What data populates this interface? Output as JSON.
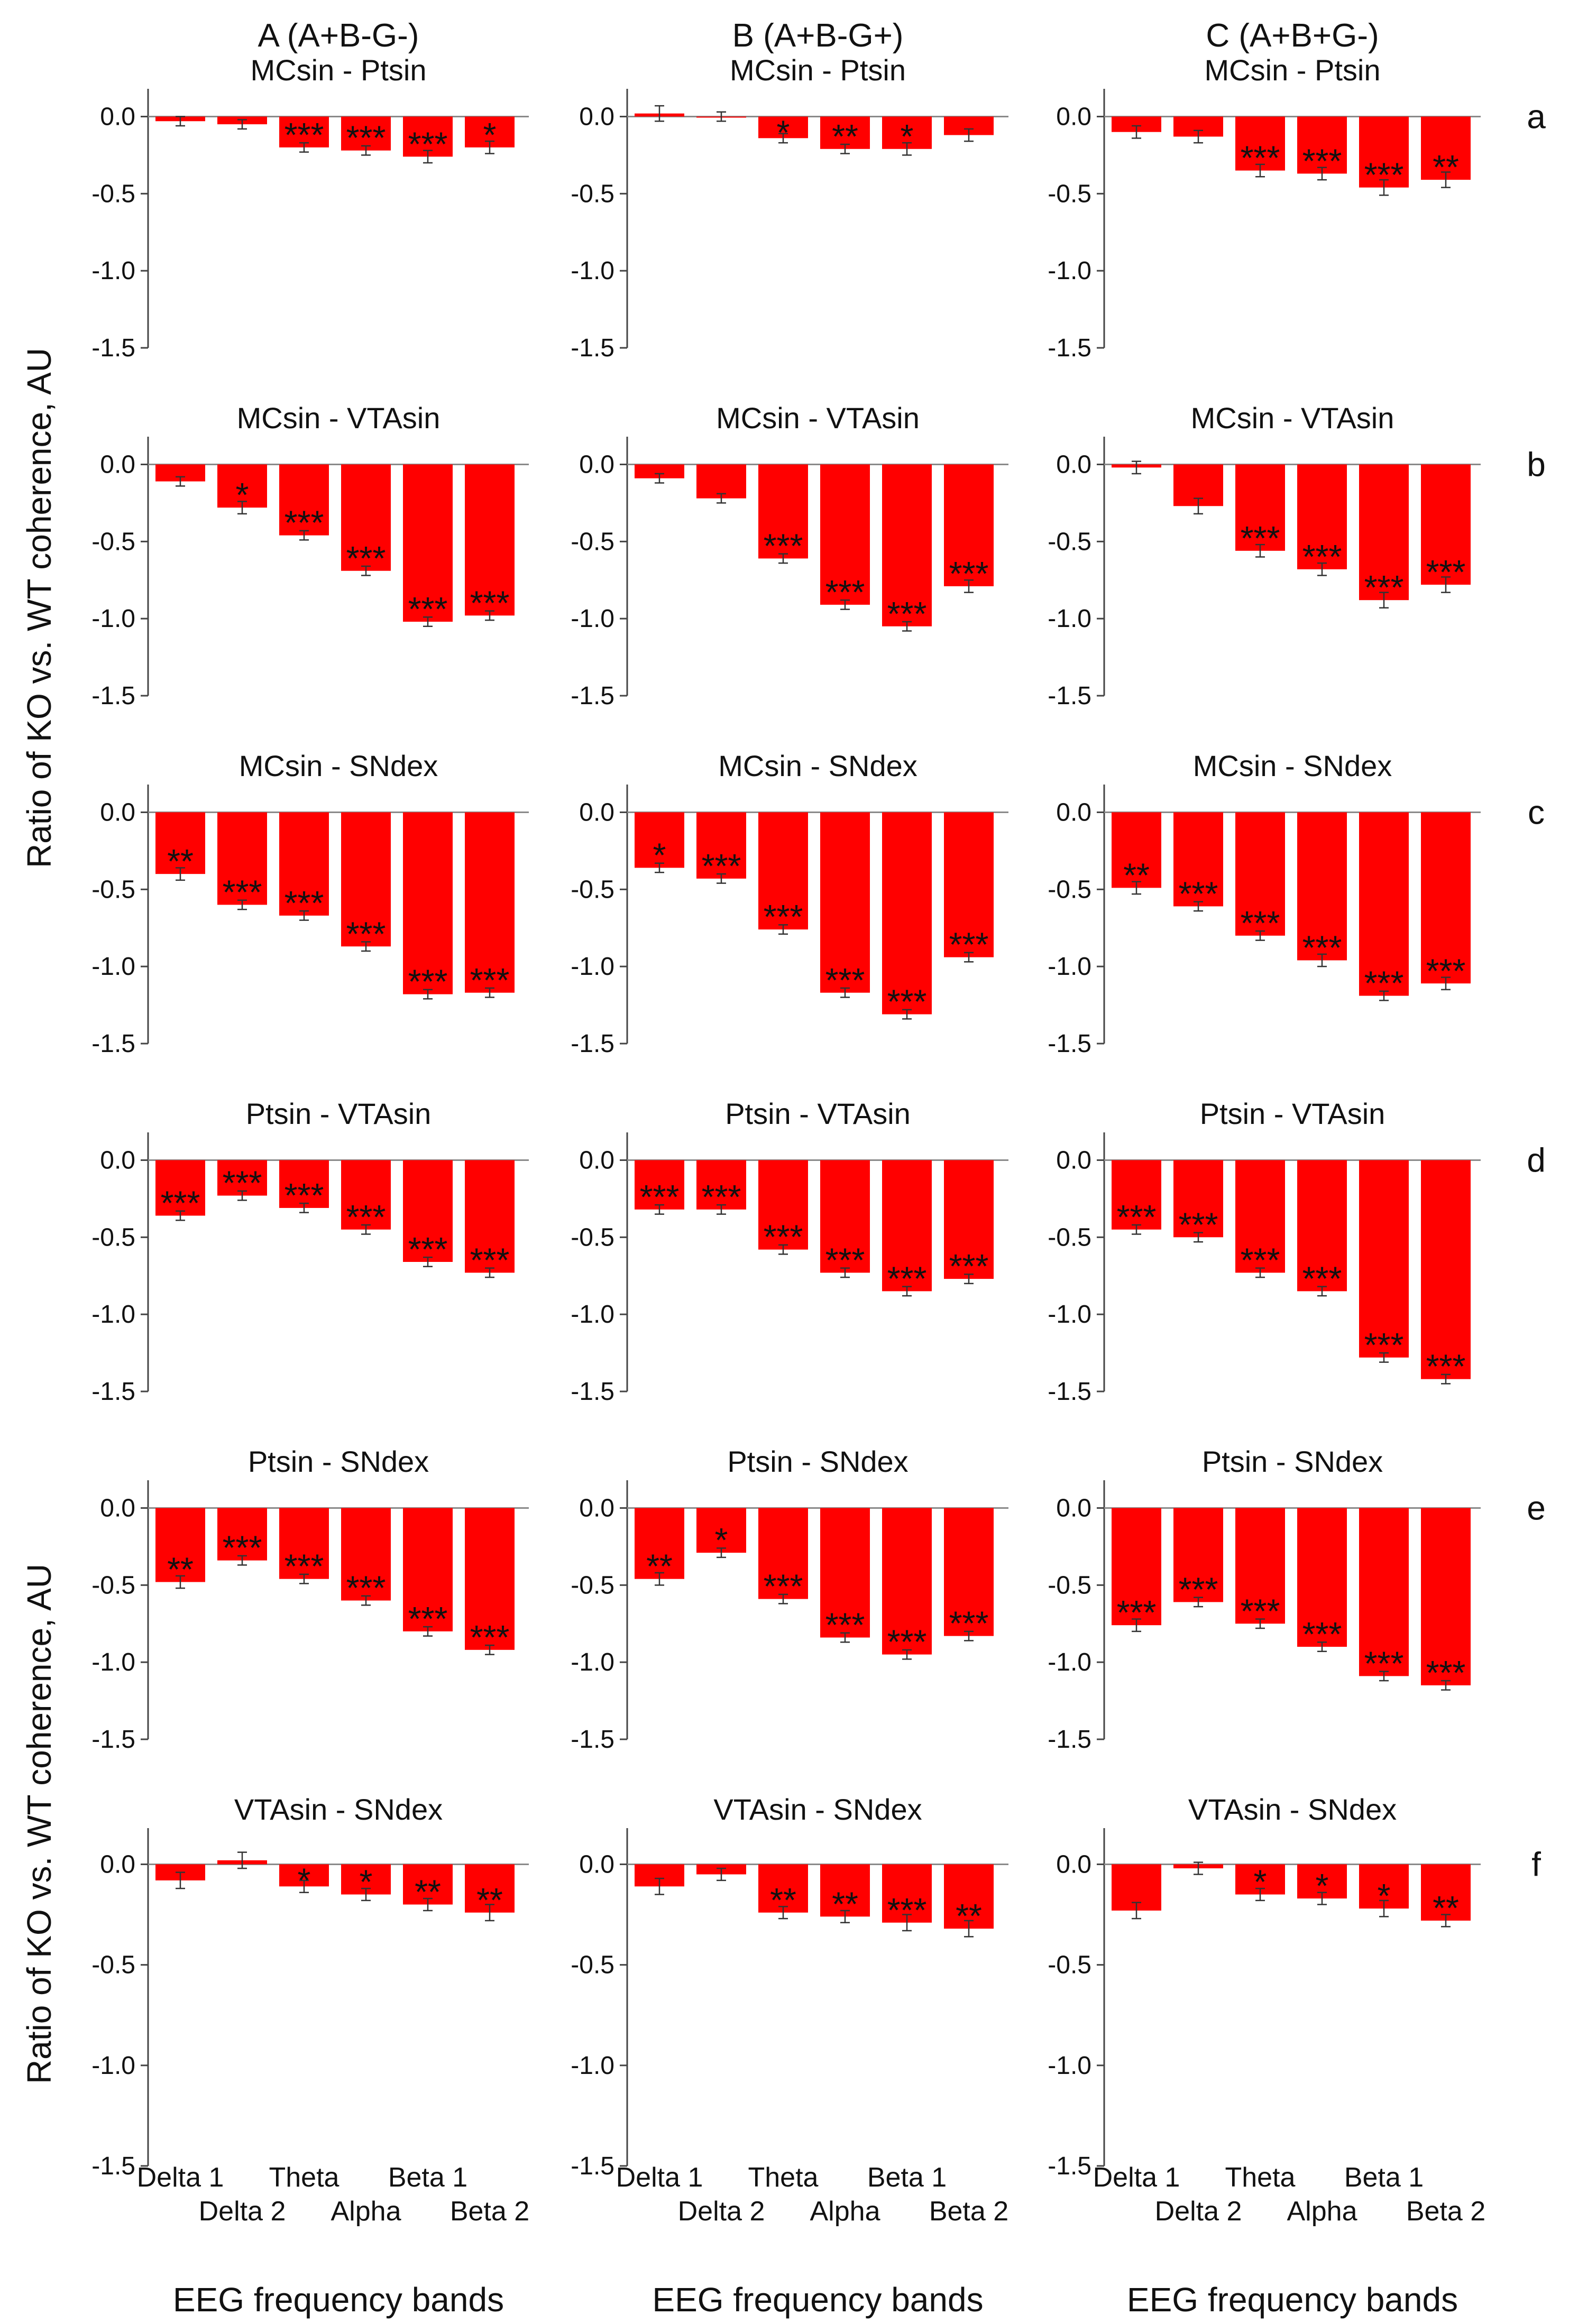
{
  "chart_data": {
    "type": "bar",
    "ylabel": "Ratio of KO vs. WT coherence, AU",
    "xlabel": "EEG frequency bands",
    "ylim": [
      -1.5,
      0.2
    ],
    "yticks": [
      "0.0",
      "-0.5",
      "-1.0",
      "-1.5"
    ],
    "ytick_values": [
      0,
      -0.5,
      -1.0,
      -1.5
    ],
    "categories": [
      "Delta 1",
      "Delta 2",
      "Theta",
      "Alpha",
      "Beta 1",
      "Beta 2"
    ],
    "bar_color": "#ff0000",
    "columns": [
      {
        "title": "A (A+B-G-)"
      },
      {
        "title": "B (A+B-G+)"
      },
      {
        "title": "C (A+B+G-)"
      }
    ],
    "rows": [
      {
        "letter": "a",
        "pair": "MCsin - Ptsin",
        "panels": [
          {
            "values": [
              -0.03,
              -0.05,
              -0.2,
              -0.22,
              -0.26,
              -0.2
            ],
            "errors": [
              0.03,
              0.03,
              0.03,
              0.03,
              0.04,
              0.04
            ],
            "sig": [
              "",
              "",
              "***",
              "***",
              "***",
              "*"
            ]
          },
          {
            "values": [
              0.02,
              0.0,
              -0.14,
              -0.21,
              -0.21,
              -0.12
            ],
            "errors": [
              0.05,
              0.03,
              0.03,
              0.03,
              0.04,
              0.04
            ],
            "sig": [
              "",
              "",
              "*",
              "**",
              "*",
              ""
            ]
          },
          {
            "values": [
              -0.1,
              -0.13,
              -0.35,
              -0.37,
              -0.46,
              -0.41
            ],
            "errors": [
              0.04,
              0.04,
              0.04,
              0.04,
              0.05,
              0.05
            ],
            "sig": [
              "",
              "",
              "***",
              "***",
              "***",
              "**"
            ]
          }
        ]
      },
      {
        "letter": "b",
        "pair": "MCsin - VTAsin",
        "panels": [
          {
            "values": [
              -0.11,
              -0.28,
              -0.46,
              -0.69,
              -1.02,
              -0.98
            ],
            "errors": [
              0.03,
              0.04,
              0.03,
              0.03,
              0.03,
              0.03
            ],
            "sig": [
              "",
              "*",
              "***",
              "***",
              "***",
              "***"
            ]
          },
          {
            "values": [
              -0.09,
              -0.22,
              -0.61,
              -0.91,
              -1.05,
              -0.79
            ],
            "errors": [
              0.03,
              0.03,
              0.03,
              0.03,
              0.03,
              0.04
            ],
            "sig": [
              "",
              "",
              "***",
              "***",
              "***",
              "***"
            ]
          },
          {
            "values": [
              -0.02,
              -0.27,
              -0.56,
              -0.68,
              -0.88,
              -0.78
            ],
            "errors": [
              0.04,
              0.05,
              0.04,
              0.04,
              0.05,
              0.05
            ],
            "sig": [
              "",
              "",
              "***",
              "***",
              "***",
              "***"
            ]
          }
        ]
      },
      {
        "letter": "c",
        "pair": "MCsin - SNdex",
        "panels": [
          {
            "values": [
              -0.4,
              -0.6,
              -0.67,
              -0.87,
              -1.18,
              -1.17
            ],
            "errors": [
              0.04,
              0.03,
              0.03,
              0.03,
              0.03,
              0.03
            ],
            "sig": [
              "**",
              "***",
              "***",
              "***",
              "***",
              "***"
            ]
          },
          {
            "values": [
              -0.36,
              -0.43,
              -0.76,
              -1.17,
              -1.31,
              -0.94
            ],
            "errors": [
              0.03,
              0.03,
              0.03,
              0.03,
              0.03,
              0.03
            ],
            "sig": [
              "*",
              "***",
              "***",
              "***",
              "***",
              "***"
            ]
          },
          {
            "values": [
              -0.49,
              -0.61,
              -0.8,
              -0.96,
              -1.19,
              -1.11
            ],
            "errors": [
              0.04,
              0.03,
              0.03,
              0.04,
              0.03,
              0.04
            ],
            "sig": [
              "**",
              "***",
              "***",
              "***",
              "***",
              "***"
            ]
          }
        ]
      },
      {
        "letter": "d",
        "pair": "Ptsin - VTAsin",
        "panels": [
          {
            "values": [
              -0.36,
              -0.23,
              -0.31,
              -0.45,
              -0.66,
              -0.73
            ],
            "errors": [
              0.03,
              0.03,
              0.03,
              0.03,
              0.03,
              0.03
            ],
            "sig": [
              "***",
              "***",
              "***",
              "***",
              "***",
              "***"
            ]
          },
          {
            "values": [
              -0.32,
              -0.32,
              -0.58,
              -0.73,
              -0.85,
              -0.77
            ],
            "errors": [
              0.03,
              0.03,
              0.03,
              0.03,
              0.03,
              0.03
            ],
            "sig": [
              "***",
              "***",
              "***",
              "***",
              "***",
              "***"
            ]
          },
          {
            "values": [
              -0.45,
              -0.5,
              -0.73,
              -0.85,
              -1.28,
              -1.42
            ],
            "errors": [
              0.03,
              0.03,
              0.03,
              0.03,
              0.03,
              0.03
            ],
            "sig": [
              "***",
              "***",
              "***",
              "***",
              "***",
              "***"
            ]
          }
        ]
      },
      {
        "letter": "e",
        "pair": "Ptsin - SNdex",
        "panels": [
          {
            "values": [
              -0.48,
              -0.34,
              -0.46,
              -0.6,
              -0.8,
              -0.92
            ],
            "errors": [
              0.04,
              0.03,
              0.03,
              0.03,
              0.03,
              0.03
            ],
            "sig": [
              "**",
              "***",
              "***",
              "***",
              "***",
              "***"
            ]
          },
          {
            "values": [
              -0.46,
              -0.29,
              -0.59,
              -0.84,
              -0.95,
              -0.83
            ],
            "errors": [
              0.04,
              0.03,
              0.03,
              0.03,
              0.03,
              0.03
            ],
            "sig": [
              "**",
              "*",
              "***",
              "***",
              "***",
              "***"
            ]
          },
          {
            "values": [
              -0.76,
              -0.61,
              -0.75,
              -0.9,
              -1.09,
              -1.15
            ],
            "errors": [
              0.04,
              0.03,
              0.03,
              0.03,
              0.03,
              0.03
            ],
            "sig": [
              "***",
              "***",
              "***",
              "***",
              "***",
              "***"
            ]
          }
        ]
      },
      {
        "letter": "f",
        "pair": "VTAsin - SNdex",
        "panels": [
          {
            "values": [
              -0.08,
              0.02,
              -0.11,
              -0.15,
              -0.2,
              -0.24
            ],
            "errors": [
              0.04,
              0.04,
              0.03,
              0.03,
              0.03,
              0.04
            ],
            "sig": [
              "",
              "",
              "*",
              "*",
              "**",
              "**"
            ]
          },
          {
            "values": [
              -0.11,
              -0.05,
              -0.24,
              -0.26,
              -0.29,
              -0.32
            ],
            "errors": [
              0.04,
              0.03,
              0.03,
              0.03,
              0.04,
              0.04
            ],
            "sig": [
              "",
              "",
              "**",
              "**",
              "***",
              "**"
            ]
          },
          {
            "values": [
              -0.23,
              -0.02,
              -0.15,
              -0.17,
              -0.22,
              -0.28
            ],
            "errors": [
              0.04,
              0.03,
              0.03,
              0.03,
              0.04,
              0.03
            ],
            "sig": [
              "",
              "",
              "*",
              "*",
              "*",
              "**"
            ]
          }
        ]
      }
    ]
  }
}
